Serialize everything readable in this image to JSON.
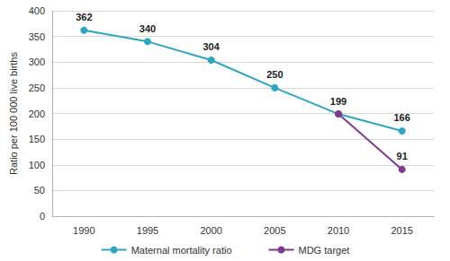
{
  "chart_data": {
    "type": "line",
    "y_label": "Ratio per 100 000 live births",
    "categories": [
      "1990",
      "1995",
      "2000",
      "2005",
      "2010",
      "2015"
    ],
    "series": [
      {
        "name": "Maternal mortality ratio",
        "color": "#2ea6bf",
        "marker": "circle",
        "values": [
          362,
          340,
          304,
          250,
          199,
          166
        ]
      },
      {
        "name": "MDG target",
        "color": "#7b3a8e",
        "marker": "circle",
        "values": [
          null,
          null,
          null,
          null,
          199,
          91
        ]
      }
    ],
    "ylim": [
      0,
      400
    ],
    "yticks": [
      0,
      50,
      100,
      150,
      200,
      250,
      300,
      350,
      400
    ],
    "grid": true,
    "legend": "bottom",
    "data_labels": true
  }
}
